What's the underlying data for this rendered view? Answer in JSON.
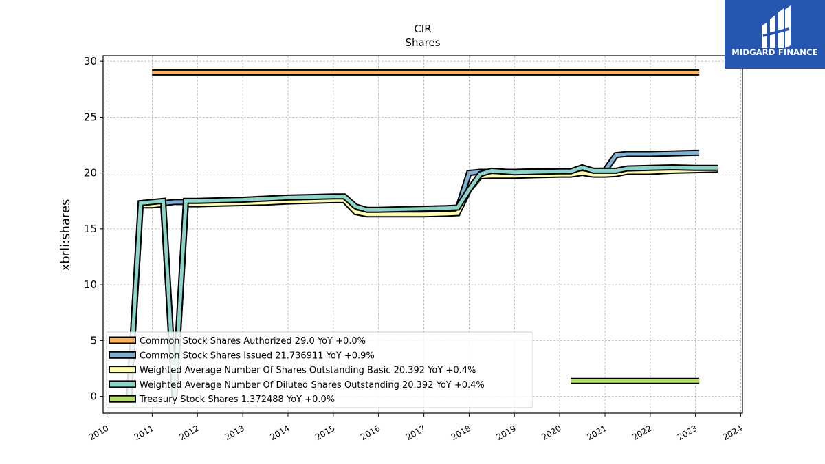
{
  "brand": {
    "name": "MIDGARD FINANCE",
    "color": "#2756b0"
  },
  "chart_data": {
    "type": "line",
    "title": "CIR",
    "subtitle": "Shares",
    "xlabel": "",
    "ylabel": "xbrli:shares",
    "xlim": [
      "2009-12-01",
      "2024-01-15"
    ],
    "ylim": [
      -1.5,
      30.5
    ],
    "yticks": [
      0,
      5,
      10,
      15,
      20,
      25,
      30
    ],
    "xticks": [
      "2010",
      "2011",
      "2012",
      "2013",
      "2014",
      "2015",
      "2016",
      "2017",
      "2018",
      "2019",
      "2020",
      "2021",
      "2022",
      "2023",
      "2024"
    ],
    "grid": true,
    "legend_position": "lower-left",
    "series": [
      {
        "name": "Common Stock Shares Authorized  29.0 YoY +0.0%",
        "color": "#fdb462",
        "points": [
          [
            "2010-12-31",
            29.0
          ],
          [
            "2023-01-31",
            29.0
          ]
        ]
      },
      {
        "name": "Common Stock Shares Issued  21.736911 YoY +0.9%",
        "color": "#80b1d3",
        "points": [
          [
            "2010-09-30",
            17.2
          ],
          [
            "2010-12-31",
            17.2
          ],
          [
            "2011-03-31",
            17.3
          ],
          [
            "2011-06-30",
            17.4
          ],
          [
            "2011-09-30",
            17.4
          ],
          [
            "2011-12-31",
            17.4
          ],
          [
            "2012-06-30",
            17.45
          ],
          [
            "2012-12-31",
            17.5
          ],
          [
            "2013-06-30",
            17.6
          ],
          [
            "2013-12-31",
            17.7
          ],
          [
            "2014-06-30",
            17.75
          ],
          [
            "2014-12-31",
            17.8
          ],
          [
            "2015-03-31",
            17.8
          ],
          [
            "2015-06-30",
            16.5
          ],
          [
            "2015-09-30",
            16.4
          ],
          [
            "2015-12-31",
            16.4
          ],
          [
            "2016-06-30",
            16.5
          ],
          [
            "2016-12-31",
            16.6
          ],
          [
            "2017-06-30",
            16.7
          ],
          [
            "2017-09-30",
            16.75
          ],
          [
            "2017-12-31",
            20.0
          ],
          [
            "2018-03-31",
            20.1
          ],
          [
            "2018-06-30",
            20.1
          ],
          [
            "2018-12-31",
            20.1
          ],
          [
            "2019-06-30",
            20.15
          ],
          [
            "2019-12-31",
            20.15
          ],
          [
            "2020-06-30",
            20.2
          ],
          [
            "2020-12-31",
            20.2
          ],
          [
            "2021-03-31",
            21.6
          ],
          [
            "2021-06-30",
            21.7
          ],
          [
            "2021-12-31",
            21.7
          ],
          [
            "2022-06-30",
            21.75
          ],
          [
            "2022-12-31",
            21.8
          ],
          [
            "2023-01-31",
            21.8
          ]
        ]
      },
      {
        "name": "Weighted Average Number Of Shares Outstanding Basic  20.392 YoY +0.4%",
        "color": "#ffffb3",
        "points": [
          [
            "2010-06-30",
            0.0
          ],
          [
            "2010-09-30",
            17.1
          ],
          [
            "2010-12-31",
            17.1
          ],
          [
            "2011-03-31",
            17.2
          ],
          [
            "2011-06-30",
            0.0
          ],
          [
            "2011-09-30",
            17.2
          ],
          [
            "2011-12-31",
            17.2
          ],
          [
            "2012-06-30",
            17.25
          ],
          [
            "2012-12-31",
            17.3
          ],
          [
            "2013-06-30",
            17.35
          ],
          [
            "2013-12-31",
            17.45
          ],
          [
            "2014-06-30",
            17.5
          ],
          [
            "2014-12-31",
            17.55
          ],
          [
            "2015-03-31",
            17.55
          ],
          [
            "2015-06-30",
            16.5
          ],
          [
            "2015-09-30",
            16.3
          ],
          [
            "2015-12-31",
            16.3
          ],
          [
            "2016-06-30",
            16.3
          ],
          [
            "2016-12-31",
            16.3
          ],
          [
            "2017-06-30",
            16.35
          ],
          [
            "2017-09-30",
            16.4
          ],
          [
            "2017-12-31",
            18.5
          ],
          [
            "2018-03-31",
            19.7
          ],
          [
            "2018-06-30",
            19.75
          ],
          [
            "2018-12-31",
            19.75
          ],
          [
            "2019-06-30",
            19.8
          ],
          [
            "2019-12-31",
            19.85
          ],
          [
            "2020-03-31",
            19.85
          ],
          [
            "2020-06-30",
            20.0
          ],
          [
            "2020-09-30",
            19.85
          ],
          [
            "2020-12-31",
            19.85
          ],
          [
            "2021-03-31",
            19.9
          ],
          [
            "2021-06-30",
            20.1
          ],
          [
            "2021-12-31",
            20.1
          ],
          [
            "2022-06-30",
            20.2
          ],
          [
            "2022-12-31",
            20.25
          ],
          [
            "2023-06-30",
            20.3
          ]
        ]
      },
      {
        "name": "Weighted Average Number Of Diluted Shares Outstanding  20.392 YoY +0.4%",
        "color": "#8dd3c7",
        "points": [
          [
            "2010-06-30",
            0.0
          ],
          [
            "2010-09-30",
            17.3
          ],
          [
            "2010-12-31",
            17.4
          ],
          [
            "2011-03-31",
            17.5
          ],
          [
            "2011-06-30",
            0.0
          ],
          [
            "2011-09-30",
            17.5
          ],
          [
            "2011-12-31",
            17.5
          ],
          [
            "2012-06-30",
            17.55
          ],
          [
            "2012-12-31",
            17.6
          ],
          [
            "2013-06-30",
            17.7
          ],
          [
            "2013-12-31",
            17.8
          ],
          [
            "2014-06-30",
            17.85
          ],
          [
            "2014-12-31",
            17.9
          ],
          [
            "2015-03-31",
            17.9
          ],
          [
            "2015-06-30",
            17.0
          ],
          [
            "2015-09-30",
            16.7
          ],
          [
            "2015-12-31",
            16.7
          ],
          [
            "2016-06-30",
            16.75
          ],
          [
            "2016-12-31",
            16.8
          ],
          [
            "2017-06-30",
            16.85
          ],
          [
            "2017-09-30",
            16.9
          ],
          [
            "2017-12-31",
            18.5
          ],
          [
            "2018-03-31",
            19.9
          ],
          [
            "2018-06-30",
            20.2
          ],
          [
            "2018-12-31",
            20.05
          ],
          [
            "2019-06-30",
            20.1
          ],
          [
            "2019-12-31",
            20.15
          ],
          [
            "2020-03-31",
            20.15
          ],
          [
            "2020-06-30",
            20.5
          ],
          [
            "2020-09-30",
            20.2
          ],
          [
            "2020-12-31",
            20.2
          ],
          [
            "2021-03-31",
            20.2
          ],
          [
            "2021-06-30",
            20.4
          ],
          [
            "2021-12-31",
            20.45
          ],
          [
            "2022-06-30",
            20.5
          ],
          [
            "2022-12-31",
            20.45
          ],
          [
            "2023-06-30",
            20.45
          ]
        ]
      },
      {
        "name": "Treasury Stock Shares  1.372488 YoY +0.0%",
        "color": "#b3de69",
        "points": [
          [
            "2020-03-31",
            1.372488
          ],
          [
            "2023-01-31",
            1.372488
          ]
        ]
      }
    ]
  }
}
